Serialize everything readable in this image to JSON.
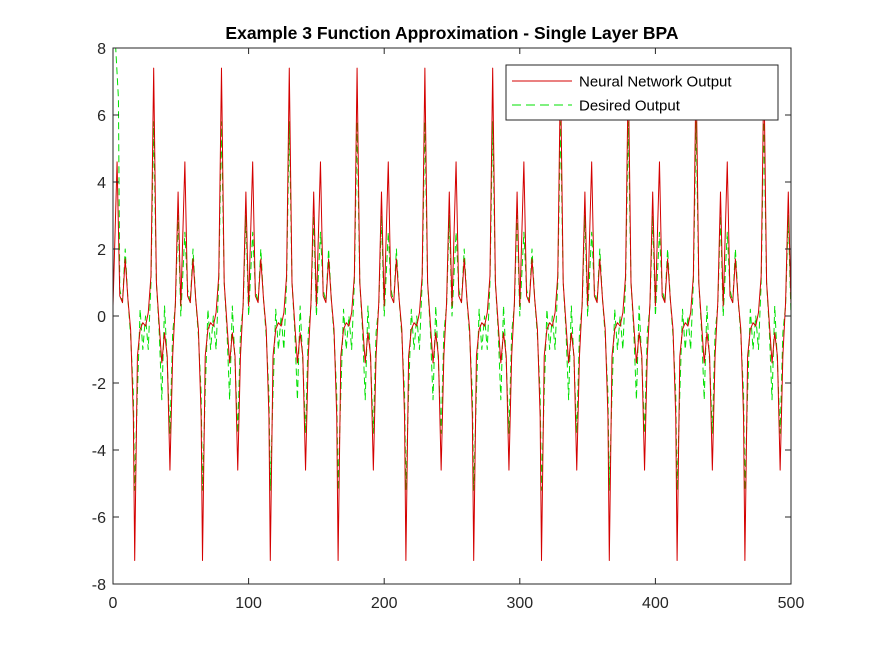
{
  "chart_data": {
    "type": "line",
    "title": "Example 3 Function Approximation -  Single Layer BPA",
    "xlabel": "",
    "ylabel": "",
    "xlim": [
      0,
      500
    ],
    "ylim": [
      -8,
      8
    ],
    "xticks": [
      "0",
      "100",
      "200",
      "300",
      "400",
      "500"
    ],
    "yticks": [
      "-8",
      "-6",
      "-4",
      "-2",
      "0",
      "2",
      "4",
      "6",
      "8"
    ],
    "grid": false,
    "legend_position": "top-right",
    "period": 50,
    "cycle_x": [
      0,
      3,
      5,
      7,
      9,
      11,
      13,
      15,
      16,
      18,
      20,
      22,
      24,
      26,
      28,
      30,
      32,
      34,
      36,
      38,
      40,
      42,
      44,
      46,
      48
    ],
    "series": [
      {
        "name": "Neural Network Output",
        "color": "#d40000",
        "style": "solid",
        "values": [
          0.3,
          4.6,
          0.6,
          0.4,
          1.7,
          0.5,
          -0.4,
          -3.0,
          -7.3,
          -1.2,
          -0.4,
          -0.2,
          -0.3,
          0.1,
          1.2,
          7.4,
          1.0,
          -0.2,
          -1.4,
          -0.5,
          -1.2,
          -4.6,
          -1.2,
          0.4,
          3.7
        ]
      },
      {
        "name": "Desired Output",
        "color": "#00e000",
        "style": "dashed",
        "values": [
          0.0,
          2.5,
          0.8,
          0.4,
          2.0,
          0.5,
          -0.6,
          -2.3,
          -5.2,
          -2.3,
          0.2,
          -1.0,
          0.0,
          -1.0,
          1.0,
          5.8,
          1.0,
          -0.4,
          -2.5,
          0.3,
          -1.4,
          -3.5,
          -0.5,
          0.3,
          3.0
        ]
      }
    ],
    "startup_overshoot": [
      [
        0,
        8.0
      ],
      [
        2,
        8.0
      ],
      [
        4,
        6.5
      ]
    ]
  }
}
